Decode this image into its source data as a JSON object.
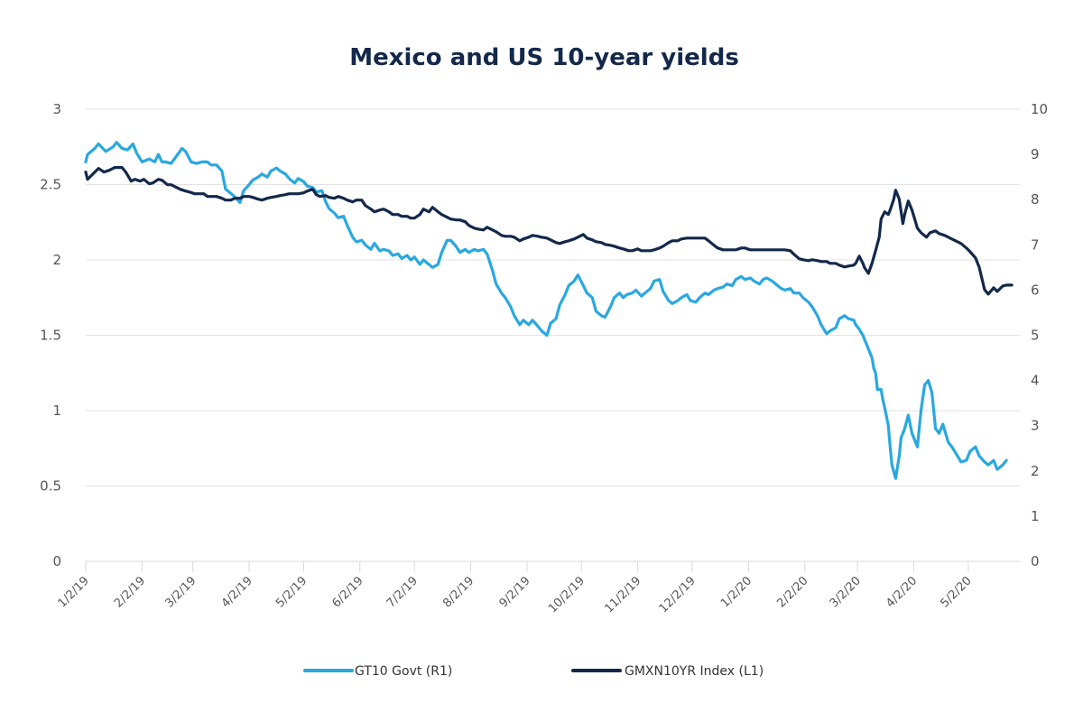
{
  "chart_data": {
    "type": "line",
    "title": "Mexico and US 10-year yields",
    "xlabel": "",
    "start_date": "2019-01-02",
    "x_ticks": [
      "1/2/19",
      "2/2/19",
      "3/2/19",
      "4/2/19",
      "5/2/19",
      "6/2/19",
      "7/2/19",
      "8/2/19",
      "9/2/19",
      "10/2/19",
      "11/2/19",
      "12/2/19",
      "1/2/20",
      "2/2/20",
      "3/2/20",
      "4/2/20",
      "5/2/20"
    ],
    "x_tick_days": [
      0,
      31,
      59,
      90,
      120,
      151,
      181,
      212,
      243,
      273,
      304,
      334,
      365,
      396,
      425,
      456,
      486
    ],
    "x_range_days": [
      0,
      514
    ],
    "y_left": {
      "ticks": [
        "0",
        "0.5",
        "1",
        "1.5",
        "2",
        "2.5",
        "3"
      ],
      "range": [
        0,
        3
      ]
    },
    "y_right": {
      "ticks": [
        "0",
        "1",
        "2",
        "3",
        "4",
        "5",
        "6",
        "7",
        "8",
        "9",
        "10"
      ],
      "range": [
        0,
        10
      ]
    },
    "grid": true,
    "legend_position": "bottom",
    "series": [
      {
        "name": "GT10 Govt  (R1)",
        "axis": "left",
        "color": "#29a8e0",
        "days": [
          0,
          1,
          5,
          7,
          11,
          15,
          17,
          20,
          23,
          26,
          28,
          31,
          35,
          38,
          40,
          42,
          44,
          47,
          50,
          53,
          55,
          58,
          61,
          64,
          67,
          69,
          72,
          75,
          77,
          80,
          82,
          85,
          87,
          90,
          92,
          95,
          97,
          100,
          102,
          105,
          107,
          110,
          112,
          115,
          117,
          120,
          122,
          125,
          127,
          130,
          132,
          134,
          137,
          139,
          142,
          144,
          147,
          149,
          152,
          154,
          157,
          159,
          162,
          164,
          167,
          169,
          172,
          174,
          177,
          179,
          181,
          184,
          186,
          189,
          191,
          194,
          196,
          199,
          201,
          204,
          206,
          209,
          210,
          211,
          214,
          216,
          219,
          221,
          224,
          226,
          229,
          231,
          234,
          236,
          239,
          241,
          244,
          246,
          249,
          251,
          254,
          256,
          259,
          261,
          264,
          266,
          269,
          271,
          274,
          276,
          279,
          281,
          284,
          286,
          289,
          291,
          294,
          296,
          298,
          301,
          303,
          306,
          308,
          311,
          313,
          316,
          318,
          321,
          323,
          326,
          328,
          331,
          333,
          336,
          338,
          341,
          343,
          346,
          348,
          351,
          353,
          356,
          358,
          361,
          363,
          366,
          368,
          371,
          373,
          375,
          378,
          380,
          383,
          385,
          388,
          390,
          393,
          395,
          398,
          400,
          403,
          405,
          408,
          410,
          413,
          415,
          418,
          420,
          423,
          424,
          426,
          428,
          429,
          431,
          433,
          434,
          435,
          436,
          438,
          439,
          440,
          442,
          443,
          444,
          446,
          448,
          449,
          451,
          453,
          455,
          458,
          460,
          462,
          464,
          466,
          468,
          470,
          472,
          475,
          477,
          480,
          482,
          485,
          487,
          490,
          492,
          495,
          497,
          500,
          502,
          505,
          507
        ],
        "values": [
          2.65,
          2.7,
          2.74,
          2.77,
          2.72,
          2.75,
          2.78,
          2.74,
          2.73,
          2.77,
          2.71,
          2.65,
          2.67,
          2.65,
          2.7,
          2.65,
          2.65,
          2.64,
          2.69,
          2.74,
          2.72,
          2.65,
          2.64,
          2.65,
          2.65,
          2.63,
          2.63,
          2.59,
          2.47,
          2.44,
          2.42,
          2.38,
          2.46,
          2.5,
          2.53,
          2.55,
          2.57,
          2.55,
          2.59,
          2.61,
          2.59,
          2.57,
          2.54,
          2.51,
          2.54,
          2.52,
          2.49,
          2.48,
          2.45,
          2.46,
          2.39,
          2.34,
          2.31,
          2.28,
          2.29,
          2.23,
          2.15,
          2.12,
          2.13,
          2.1,
          2.07,
          2.11,
          2.06,
          2.07,
          2.06,
          2.03,
          2.04,
          2.01,
          2.03,
          2.0,
          2.02,
          1.97,
          2.0,
          1.97,
          1.95,
          1.97,
          2.05,
          2.13,
          2.13,
          2.09,
          2.05,
          2.07,
          2.06,
          2.05,
          2.07,
          2.06,
          2.07,
          2.04,
          1.93,
          1.84,
          1.78,
          1.75,
          1.69,
          1.63,
          1.57,
          1.6,
          1.57,
          1.6,
          1.56,
          1.53,
          1.5,
          1.58,
          1.61,
          1.7,
          1.77,
          1.83,
          1.86,
          1.9,
          1.83,
          1.78,
          1.75,
          1.66,
          1.63,
          1.62,
          1.69,
          1.75,
          1.78,
          1.75,
          1.77,
          1.78,
          1.8,
          1.76,
          1.78,
          1.81,
          1.86,
          1.87,
          1.79,
          1.73,
          1.71,
          1.73,
          1.75,
          1.77,
          1.73,
          1.72,
          1.75,
          1.78,
          1.77,
          1.8,
          1.81,
          1.82,
          1.84,
          1.83,
          1.87,
          1.89,
          1.87,
          1.88,
          1.86,
          1.84,
          1.87,
          1.88,
          1.86,
          1.84,
          1.81,
          1.8,
          1.81,
          1.78,
          1.78,
          1.75,
          1.72,
          1.69,
          1.63,
          1.57,
          1.51,
          1.53,
          1.55,
          1.61,
          1.63,
          1.61,
          1.6,
          1.57,
          1.54,
          1.5,
          1.47,
          1.41,
          1.35,
          1.28,
          1.25,
          1.14,
          1.14,
          1.07,
          1.02,
          0.9,
          0.76,
          0.64,
          0.55,
          0.7,
          0.82,
          0.88,
          0.97,
          0.85,
          0.76,
          1.0,
          1.17,
          1.2,
          1.12,
          0.88,
          0.85,
          0.91,
          0.79,
          0.76,
          0.7,
          0.66,
          0.67,
          0.73,
          0.76,
          0.7,
          0.66,
          0.64,
          0.67,
          0.61,
          0.64,
          0.67,
          0.64,
          0.66,
          0.7,
          0.68,
          0.69,
          0.72,
          0.69,
          0.7,
          0.67
        ]
      },
      {
        "name": "GMXN10YR Index  (L1)",
        "axis": "right",
        "color": "#13284a",
        "days": [
          0,
          1,
          5,
          7,
          10,
          13,
          16,
          20,
          22,
          25,
          27,
          30,
          32,
          35,
          37,
          40,
          42,
          45,
          47,
          50,
          52,
          55,
          57,
          60,
          62,
          65,
          67,
          70,
          72,
          75,
          77,
          80,
          82,
          85,
          87,
          90,
          92,
          95,
          97,
          100,
          102,
          105,
          107,
          110,
          112,
          115,
          117,
          120,
          122,
          125,
          127,
          129,
          132,
          134,
          137,
          139,
          142,
          144,
          147,
          149,
          152,
          154,
          157,
          159,
          162,
          164,
          167,
          169,
          172,
          174,
          177,
          179,
          181,
          184,
          186,
          189,
          191,
          194,
          196,
          199,
          201,
          204,
          206,
          209,
          211,
          214,
          216,
          219,
          221,
          224,
          226,
          229,
          231,
          234,
          236,
          239,
          241,
          244,
          246,
          249,
          251,
          254,
          256,
          259,
          261,
          264,
          266,
          269,
          271,
          274,
          276,
          279,
          281,
          284,
          286,
          289,
          291,
          294,
          296,
          299,
          301,
          304,
          306,
          309,
          311,
          313,
          316,
          318,
          321,
          323,
          326,
          328,
          331,
          333,
          336,
          338,
          341,
          343,
          346,
          348,
          351,
          353,
          356,
          358,
          361,
          363,
          366,
          368,
          371,
          373,
          376,
          378,
          380,
          383,
          385,
          388,
          390,
          393,
          395,
          398,
          400,
          403,
          405,
          408,
          410,
          413,
          415,
          418,
          420,
          423,
          424,
          426,
          428,
          429,
          431,
          433,
          435,
          437,
          438,
          440,
          442,
          443,
          445,
          446,
          448,
          450,
          451,
          453,
          455,
          458,
          460,
          463,
          465,
          468,
          470,
          473,
          475,
          477,
          480,
          482,
          485,
          487,
          490,
          492,
          495,
          497,
          500,
          502,
          505,
          507,
          510
        ],
        "values": [
          8.61,
          8.45,
          8.61,
          8.69,
          8.61,
          8.65,
          8.71,
          8.71,
          8.61,
          8.41,
          8.45,
          8.41,
          8.45,
          8.35,
          8.37,
          8.45,
          8.43,
          8.33,
          8.33,
          8.27,
          8.23,
          8.19,
          8.17,
          8.13,
          8.13,
          8.13,
          8.07,
          8.07,
          8.07,
          8.03,
          7.99,
          7.99,
          8.03,
          8.03,
          8.07,
          8.07,
          8.05,
          8.01,
          7.99,
          8.03,
          8.05,
          8.07,
          8.09,
          8.11,
          8.13,
          8.13,
          8.13,
          8.15,
          8.19,
          8.23,
          8.11,
          8.07,
          8.09,
          8.05,
          8.03,
          8.07,
          8.03,
          7.99,
          7.95,
          7.99,
          7.99,
          7.87,
          7.79,
          7.73,
          7.77,
          7.79,
          7.73,
          7.67,
          7.67,
          7.63,
          7.63,
          7.59,
          7.59,
          7.67,
          7.79,
          7.73,
          7.83,
          7.73,
          7.67,
          7.61,
          7.57,
          7.55,
          7.55,
          7.51,
          7.43,
          7.37,
          7.35,
          7.33,
          7.39,
          7.33,
          7.29,
          7.21,
          7.19,
          7.19,
          7.17,
          7.09,
          7.13,
          7.17,
          7.21,
          7.19,
          7.17,
          7.15,
          7.11,
          7.05,
          7.03,
          7.07,
          7.09,
          7.13,
          7.17,
          7.23,
          7.15,
          7.11,
          7.07,
          7.05,
          7.01,
          6.99,
          6.97,
          6.93,
          6.91,
          6.87,
          6.87,
          6.91,
          6.87,
          6.87,
          6.87,
          6.89,
          6.93,
          6.97,
          7.05,
          7.09,
          7.09,
          7.13,
          7.15,
          7.15,
          7.15,
          7.15,
          7.15,
          7.09,
          6.99,
          6.93,
          6.89,
          6.89,
          6.89,
          6.89,
          6.93,
          6.93,
          6.89,
          6.89,
          6.89,
          6.89,
          6.89,
          6.89,
          6.89,
          6.89,
          6.89,
          6.87,
          6.79,
          6.69,
          6.67,
          6.65,
          6.67,
          6.65,
          6.63,
          6.63,
          6.59,
          6.59,
          6.55,
          6.51,
          6.53,
          6.55,
          6.59,
          6.75,
          6.59,
          6.49,
          6.37,
          6.59,
          6.87,
          7.17,
          7.57,
          7.73,
          7.67,
          7.77,
          8.01,
          8.21,
          8.01,
          7.47,
          7.67,
          7.97,
          7.77,
          7.37,
          7.27,
          7.17,
          7.27,
          7.31,
          7.25,
          7.21,
          7.17,
          7.13,
          7.07,
          7.03,
          6.93,
          6.85,
          6.71,
          6.51,
          6.01,
          5.91,
          6.05,
          5.97,
          6.09,
          6.11,
          6.11,
          6.17,
          6.25,
          6.17
        ]
      }
    ]
  }
}
